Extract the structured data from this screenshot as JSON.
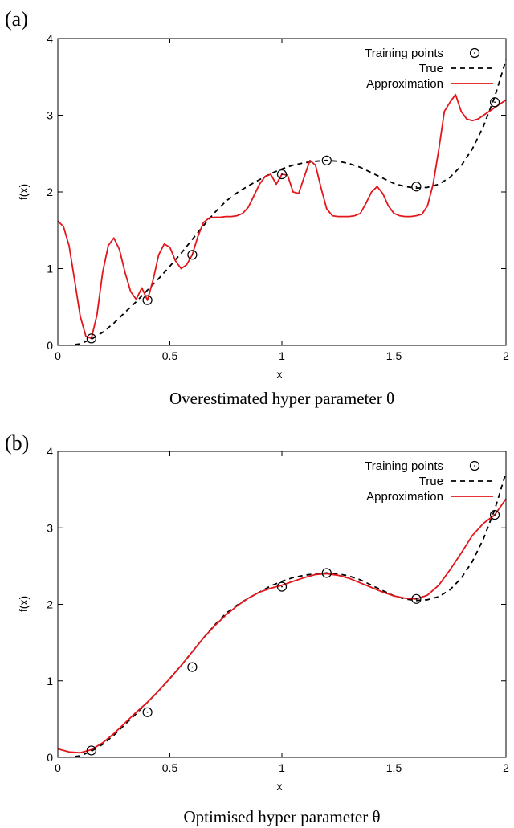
{
  "chart_data": [
    {
      "panel_label": "(a)",
      "type": "line",
      "caption": "Overestimated hyper parameter θ",
      "xlabel": "x",
      "ylabel": "f(x)",
      "xlim": [
        0,
        2
      ],
      "ylim": [
        0,
        4
      ],
      "x_ticks": [
        "0",
        "0.5",
        "1",
        "1.5",
        "2"
      ],
      "y_ticks": [
        "0",
        "1",
        "2",
        "3",
        "4"
      ],
      "grid": false,
      "legend_position": "top-right",
      "legend": [
        "Training points",
        "True",
        "Approximation"
      ],
      "colors": {
        "training": "#000000",
        "true": "#000000",
        "approximation": "#e3161b"
      },
      "series": [
        {
          "name": "Training points",
          "style": "markers",
          "x": [
            0.15,
            0.4,
            0.6,
            1.0,
            1.2,
            1.6,
            1.95
          ],
          "y": [
            0.09,
            0.59,
            1.18,
            2.23,
            2.41,
            2.07,
            3.17
          ]
        },
        {
          "name": "True",
          "style": "dashed",
          "x": [
            0.0,
            0.05,
            0.1,
            0.15,
            0.2,
            0.25,
            0.3,
            0.35,
            0.4,
            0.45,
            0.5,
            0.55,
            0.6,
            0.65,
            0.7,
            0.75,
            0.8,
            0.85,
            0.9,
            0.95,
            1.0,
            1.05,
            1.1,
            1.15,
            1.2,
            1.25,
            1.3,
            1.35,
            1.4,
            1.45,
            1.5,
            1.55,
            1.6,
            1.65,
            1.7,
            1.75,
            1.8,
            1.85,
            1.9,
            1.95,
            2.0
          ],
          "y": [
            0.0,
            0.0,
            0.02,
            0.08,
            0.17,
            0.29,
            0.43,
            0.57,
            0.72,
            0.87,
            1.03,
            1.2,
            1.38,
            1.56,
            1.73,
            1.88,
            1.99,
            2.08,
            2.16,
            2.24,
            2.3,
            2.35,
            2.38,
            2.4,
            2.41,
            2.4,
            2.37,
            2.32,
            2.25,
            2.18,
            2.11,
            2.07,
            2.05,
            2.06,
            2.1,
            2.19,
            2.34,
            2.56,
            2.86,
            3.24,
            3.72
          ]
        },
        {
          "name": "Approximation",
          "style": "solid",
          "x": [
            0.0,
            0.025,
            0.05,
            0.075,
            0.1,
            0.125,
            0.15,
            0.175,
            0.2,
            0.225,
            0.25,
            0.275,
            0.3,
            0.325,
            0.35,
            0.375,
            0.4,
            0.425,
            0.45,
            0.475,
            0.5,
            0.525,
            0.55,
            0.575,
            0.6,
            0.625,
            0.65,
            0.675,
            0.7,
            0.725,
            0.75,
            0.775,
            0.8,
            0.825,
            0.85,
            0.875,
            0.9,
            0.925,
            0.95,
            0.975,
            1.0,
            1.025,
            1.05,
            1.075,
            1.1,
            1.125,
            1.15,
            1.175,
            1.2,
            1.225,
            1.25,
            1.275,
            1.3,
            1.325,
            1.35,
            1.375,
            1.4,
            1.425,
            1.45,
            1.475,
            1.5,
            1.525,
            1.55,
            1.575,
            1.6,
            1.625,
            1.65,
            1.675,
            1.7,
            1.725,
            1.75,
            1.775,
            1.8,
            1.825,
            1.85,
            1.875,
            1.9,
            1.925,
            1.95,
            1.975,
            2.0
          ],
          "y": [
            1.62,
            1.55,
            1.3,
            0.85,
            0.38,
            0.12,
            0.09,
            0.4,
            0.95,
            1.3,
            1.4,
            1.25,
            0.95,
            0.7,
            0.6,
            0.75,
            0.59,
            0.85,
            1.18,
            1.32,
            1.28,
            1.1,
            1.0,
            1.05,
            1.18,
            1.42,
            1.6,
            1.66,
            1.67,
            1.67,
            1.68,
            1.68,
            1.69,
            1.72,
            1.8,
            1.95,
            2.1,
            2.2,
            2.23,
            2.1,
            2.23,
            2.22,
            2.0,
            1.98,
            2.2,
            2.41,
            2.35,
            2.05,
            1.78,
            1.69,
            1.68,
            1.68,
            1.68,
            1.69,
            1.72,
            1.85,
            2.0,
            2.07,
            1.98,
            1.82,
            1.72,
            1.69,
            1.68,
            1.68,
            1.69,
            1.71,
            1.82,
            2.1,
            2.55,
            3.05,
            3.17,
            3.27,
            3.05,
            2.95,
            2.93,
            2.95,
            3.0,
            3.05,
            3.1,
            3.15,
            3.2
          ]
        }
      ]
    },
    {
      "panel_label": "(b)",
      "type": "line",
      "caption": "Optimised hyper parameter θ",
      "xlabel": "x",
      "ylabel": "f(x)",
      "xlim": [
        0,
        2
      ],
      "ylim": [
        0,
        4
      ],
      "x_ticks": [
        "0",
        "0.5",
        "1",
        "1.5",
        "2"
      ],
      "y_ticks": [
        "0",
        "1",
        "2",
        "3",
        "4"
      ],
      "grid": false,
      "legend_position": "top-right",
      "legend": [
        "Training points",
        "True",
        "Approximation"
      ],
      "colors": {
        "training": "#000000",
        "true": "#000000",
        "approximation": "#e3161b"
      },
      "series": [
        {
          "name": "Training points",
          "style": "markers",
          "x": [
            0.15,
            0.4,
            0.6,
            1.0,
            1.2,
            1.6,
            1.95
          ],
          "y": [
            0.09,
            0.59,
            1.18,
            2.23,
            2.41,
            2.07,
            3.17
          ]
        },
        {
          "name": "True",
          "style": "dashed",
          "x": [
            0.0,
            0.05,
            0.1,
            0.15,
            0.2,
            0.25,
            0.3,
            0.35,
            0.4,
            0.45,
            0.5,
            0.55,
            0.6,
            0.65,
            0.7,
            0.75,
            0.8,
            0.85,
            0.9,
            0.95,
            1.0,
            1.05,
            1.1,
            1.15,
            1.2,
            1.25,
            1.3,
            1.35,
            1.4,
            1.45,
            1.5,
            1.55,
            1.6,
            1.65,
            1.7,
            1.75,
            1.8,
            1.85,
            1.9,
            1.95,
            2.0
          ],
          "y": [
            0.0,
            0.0,
            0.02,
            0.08,
            0.17,
            0.29,
            0.43,
            0.57,
            0.72,
            0.87,
            1.03,
            1.2,
            1.38,
            1.56,
            1.73,
            1.88,
            1.99,
            2.08,
            2.16,
            2.24,
            2.3,
            2.35,
            2.38,
            2.4,
            2.41,
            2.4,
            2.37,
            2.32,
            2.25,
            2.18,
            2.11,
            2.07,
            2.05,
            2.06,
            2.1,
            2.19,
            2.34,
            2.56,
            2.86,
            3.24,
            3.72
          ]
        },
        {
          "name": "Approximation",
          "style": "solid",
          "x": [
            0.0,
            0.05,
            0.1,
            0.15,
            0.2,
            0.25,
            0.3,
            0.35,
            0.4,
            0.45,
            0.5,
            0.55,
            0.6,
            0.65,
            0.7,
            0.75,
            0.8,
            0.85,
            0.9,
            0.95,
            1.0,
            1.05,
            1.1,
            1.15,
            1.2,
            1.25,
            1.3,
            1.35,
            1.4,
            1.45,
            1.5,
            1.55,
            1.6,
            1.65,
            1.7,
            1.75,
            1.8,
            1.85,
            1.9,
            1.95,
            2.0
          ],
          "y": [
            0.11,
            0.07,
            0.06,
            0.1,
            0.19,
            0.31,
            0.45,
            0.59,
            0.72,
            0.87,
            1.03,
            1.2,
            1.38,
            1.56,
            1.72,
            1.86,
            1.98,
            2.08,
            2.16,
            2.21,
            2.25,
            2.3,
            2.35,
            2.39,
            2.4,
            2.38,
            2.34,
            2.28,
            2.22,
            2.16,
            2.11,
            2.08,
            2.07,
            2.12,
            2.25,
            2.45,
            2.67,
            2.9,
            3.06,
            3.17,
            3.38
          ]
        }
      ]
    }
  ]
}
